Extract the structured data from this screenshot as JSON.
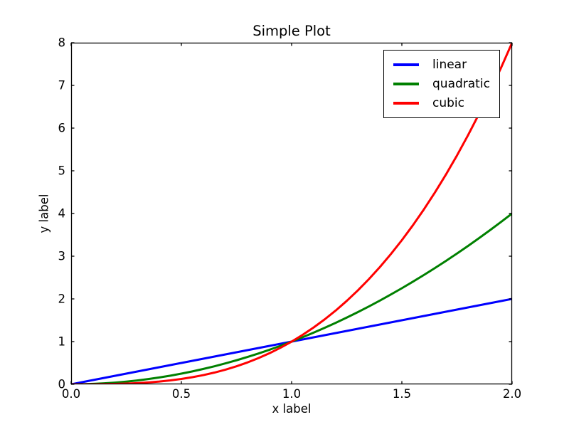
{
  "figure": {
    "background": "#ffffff",
    "axes_edge_color": "#000000",
    "text_color": "#000000"
  },
  "chart_data": {
    "type": "line",
    "title": "Simple Plot",
    "xlabel": "x label",
    "ylabel": "y label",
    "xlim": [
      0.0,
      2.0
    ],
    "ylim": [
      0.0,
      8.0
    ],
    "grid": false,
    "tick_direction": "in",
    "xtick_values": [
      0.0,
      0.5,
      1.0,
      1.5,
      2.0
    ],
    "xtick_labels": [
      "0.0",
      "0.5",
      "1.0",
      "1.5",
      "2.0"
    ],
    "ytick_values": [
      0,
      1,
      2,
      3,
      4,
      5,
      6,
      7,
      8
    ],
    "ytick_labels": [
      "0",
      "1",
      "2",
      "3",
      "4",
      "5",
      "6",
      "7",
      "8"
    ],
    "legend": {
      "position": "upper right",
      "entries": [
        "linear",
        "quadratic",
        "cubic"
      ]
    },
    "x": [
      0,
      0.05,
      0.1,
      0.15,
      0.2,
      0.25,
      0.3,
      0.35,
      0.4,
      0.45,
      0.5,
      0.55,
      0.6,
      0.65,
      0.7,
      0.75,
      0.8,
      0.85,
      0.9,
      0.95,
      1,
      1.05,
      1.1,
      1.15,
      1.2,
      1.25,
      1.3,
      1.35,
      1.4,
      1.45,
      1.5,
      1.55,
      1.6,
      1.65,
      1.7,
      1.75,
      1.8,
      1.85,
      1.9,
      1.95,
      2
    ],
    "series": [
      {
        "name": "linear",
        "color": "#0000ff",
        "line_width": 3,
        "values": [
          0,
          0.05,
          0.1,
          0.15,
          0.2,
          0.25,
          0.3,
          0.35,
          0.4,
          0.45,
          0.5,
          0.55,
          0.6,
          0.65,
          0.7,
          0.75,
          0.8,
          0.85,
          0.9,
          0.95,
          1,
          1.05,
          1.1,
          1.15,
          1.2,
          1.25,
          1.3,
          1.35,
          1.4,
          1.45,
          1.5,
          1.55,
          1.6,
          1.65,
          1.7,
          1.75,
          1.8,
          1.85,
          1.9,
          1.95,
          2
        ]
      },
      {
        "name": "quadratic",
        "color": "#008000",
        "line_width": 3,
        "values": [
          0,
          0.0025,
          0.01,
          0.0225,
          0.04,
          0.0625,
          0.09,
          0.1225,
          0.16,
          0.2025,
          0.25,
          0.3025,
          0.36,
          0.4225,
          0.49,
          0.5625,
          0.64,
          0.7225,
          0.81,
          0.9025,
          1,
          1.1025,
          1.21,
          1.3225,
          1.44,
          1.5625,
          1.69,
          1.8225,
          1.96,
          2.1025,
          2.25,
          2.4025,
          2.56,
          2.7225,
          2.89,
          3.0625,
          3.24,
          3.4225,
          3.61,
          3.8025,
          4
        ]
      },
      {
        "name": "cubic",
        "color": "#ff0000",
        "line_width": 3,
        "values": [
          0,
          0.000125,
          0.001,
          0.003375,
          0.008,
          0.015625,
          0.027,
          0.042875,
          0.064,
          0.091125,
          0.125,
          0.166375,
          0.216,
          0.274625,
          0.343,
          0.421875,
          0.512,
          0.614125,
          0.729,
          0.857375,
          1,
          1.157625,
          1.331,
          1.520875,
          1.728,
          1.953125,
          2.197,
          2.460375,
          2.744,
          3.048625,
          3.375,
          3.723875,
          4.096,
          4.492125,
          4.913,
          5.359375,
          5.832,
          6.331625,
          6.859,
          7.414875,
          8
        ]
      }
    ]
  }
}
